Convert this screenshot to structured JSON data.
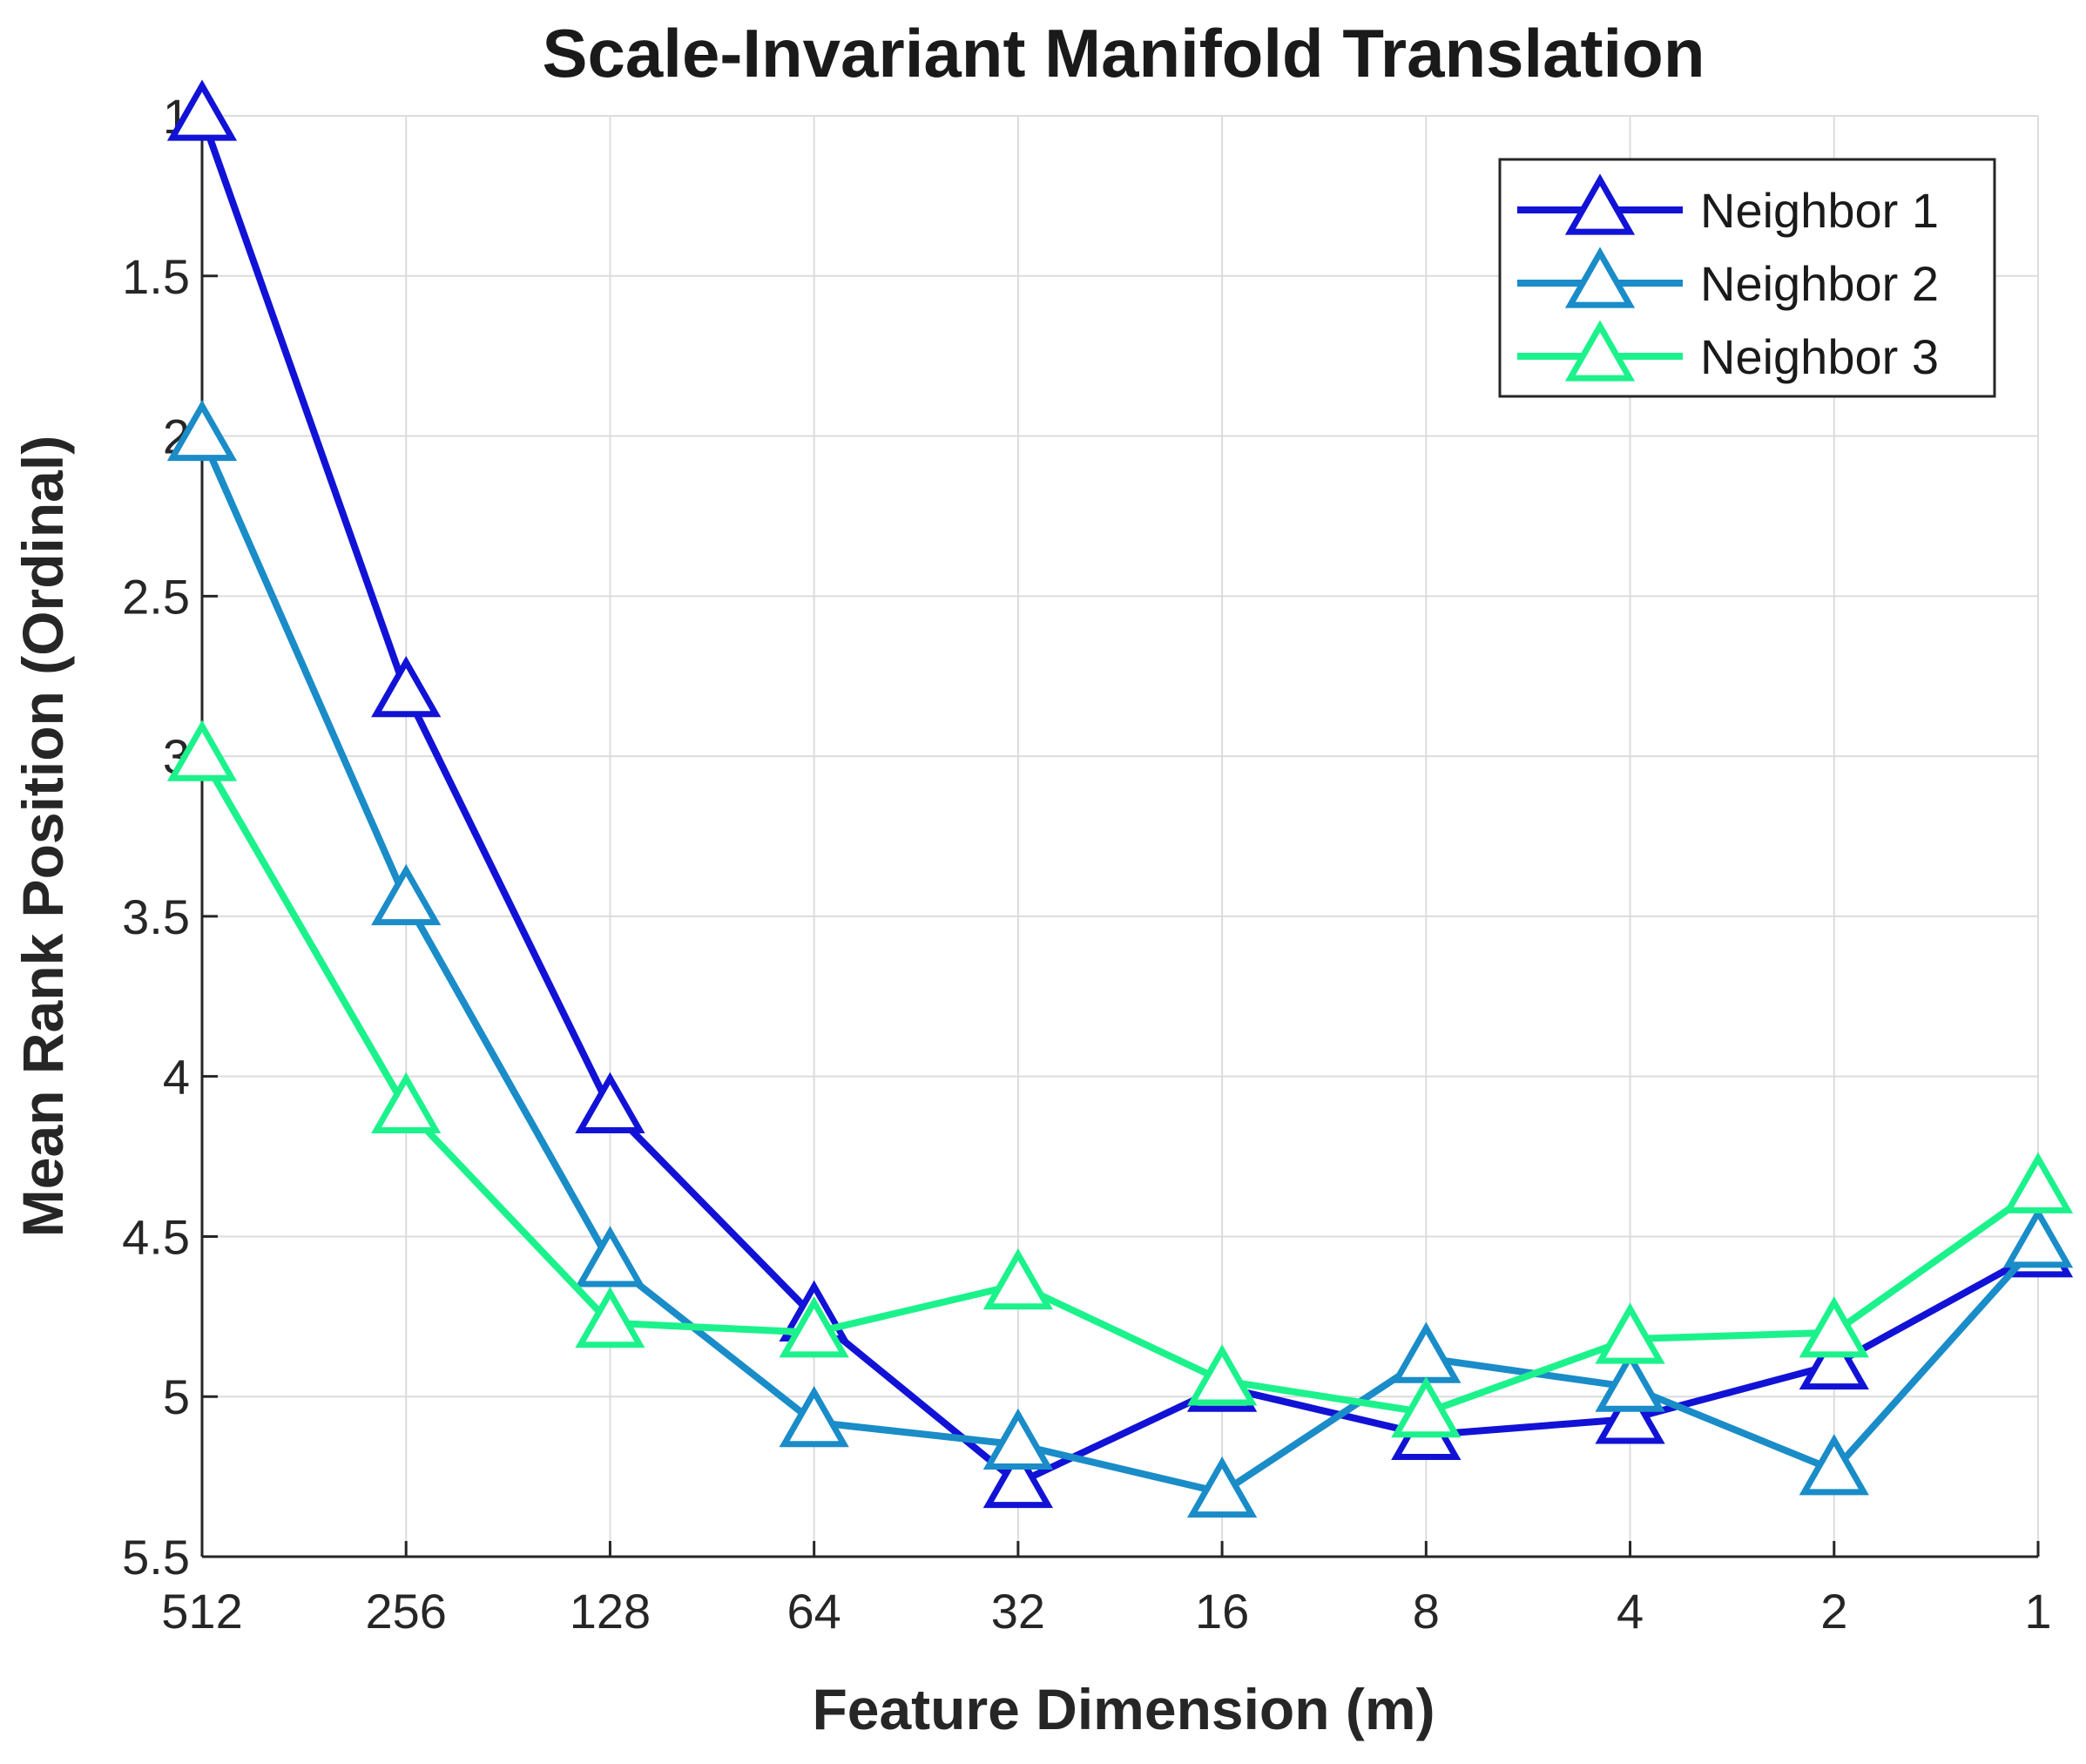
{
  "chart_data": {
    "type": "line",
    "title": "Scale-Invariant Manifold Translation",
    "xlabel": "Feature Dimension (m)",
    "ylabel": "Mean Rank Position (Ordinal)",
    "categories": [
      "512",
      "256",
      "128",
      "64",
      "32",
      "16",
      "8",
      "4",
      "2",
      "1"
    ],
    "ylim": [
      1,
      5.5
    ],
    "y_reversed": true,
    "yticks": [
      "1",
      "1.5",
      "2",
      "2.5",
      "3",
      "3.5",
      "4",
      "4.5",
      "5",
      "5.5"
    ],
    "grid": true,
    "legend_position": "top-right",
    "marker": "triangle-up",
    "series": [
      {
        "name": "Neighbor 1",
        "color": "#1212d6",
        "values": [
          1.0,
          2.8,
          4.1,
          4.75,
          5.27,
          4.97,
          5.12,
          5.07,
          4.9,
          4.55
        ]
      },
      {
        "name": "Neighbor 2",
        "color": "#1a8cc8",
        "values": [
          2.0,
          3.45,
          4.58,
          5.08,
          5.15,
          5.3,
          4.88,
          4.97,
          5.23,
          4.52
        ]
      },
      {
        "name": "Neighbor 3",
        "color": "#1cf28c",
        "values": [
          3.0,
          4.1,
          4.77,
          4.8,
          4.65,
          4.95,
          5.05,
          4.82,
          4.8,
          4.35
        ]
      }
    ]
  }
}
